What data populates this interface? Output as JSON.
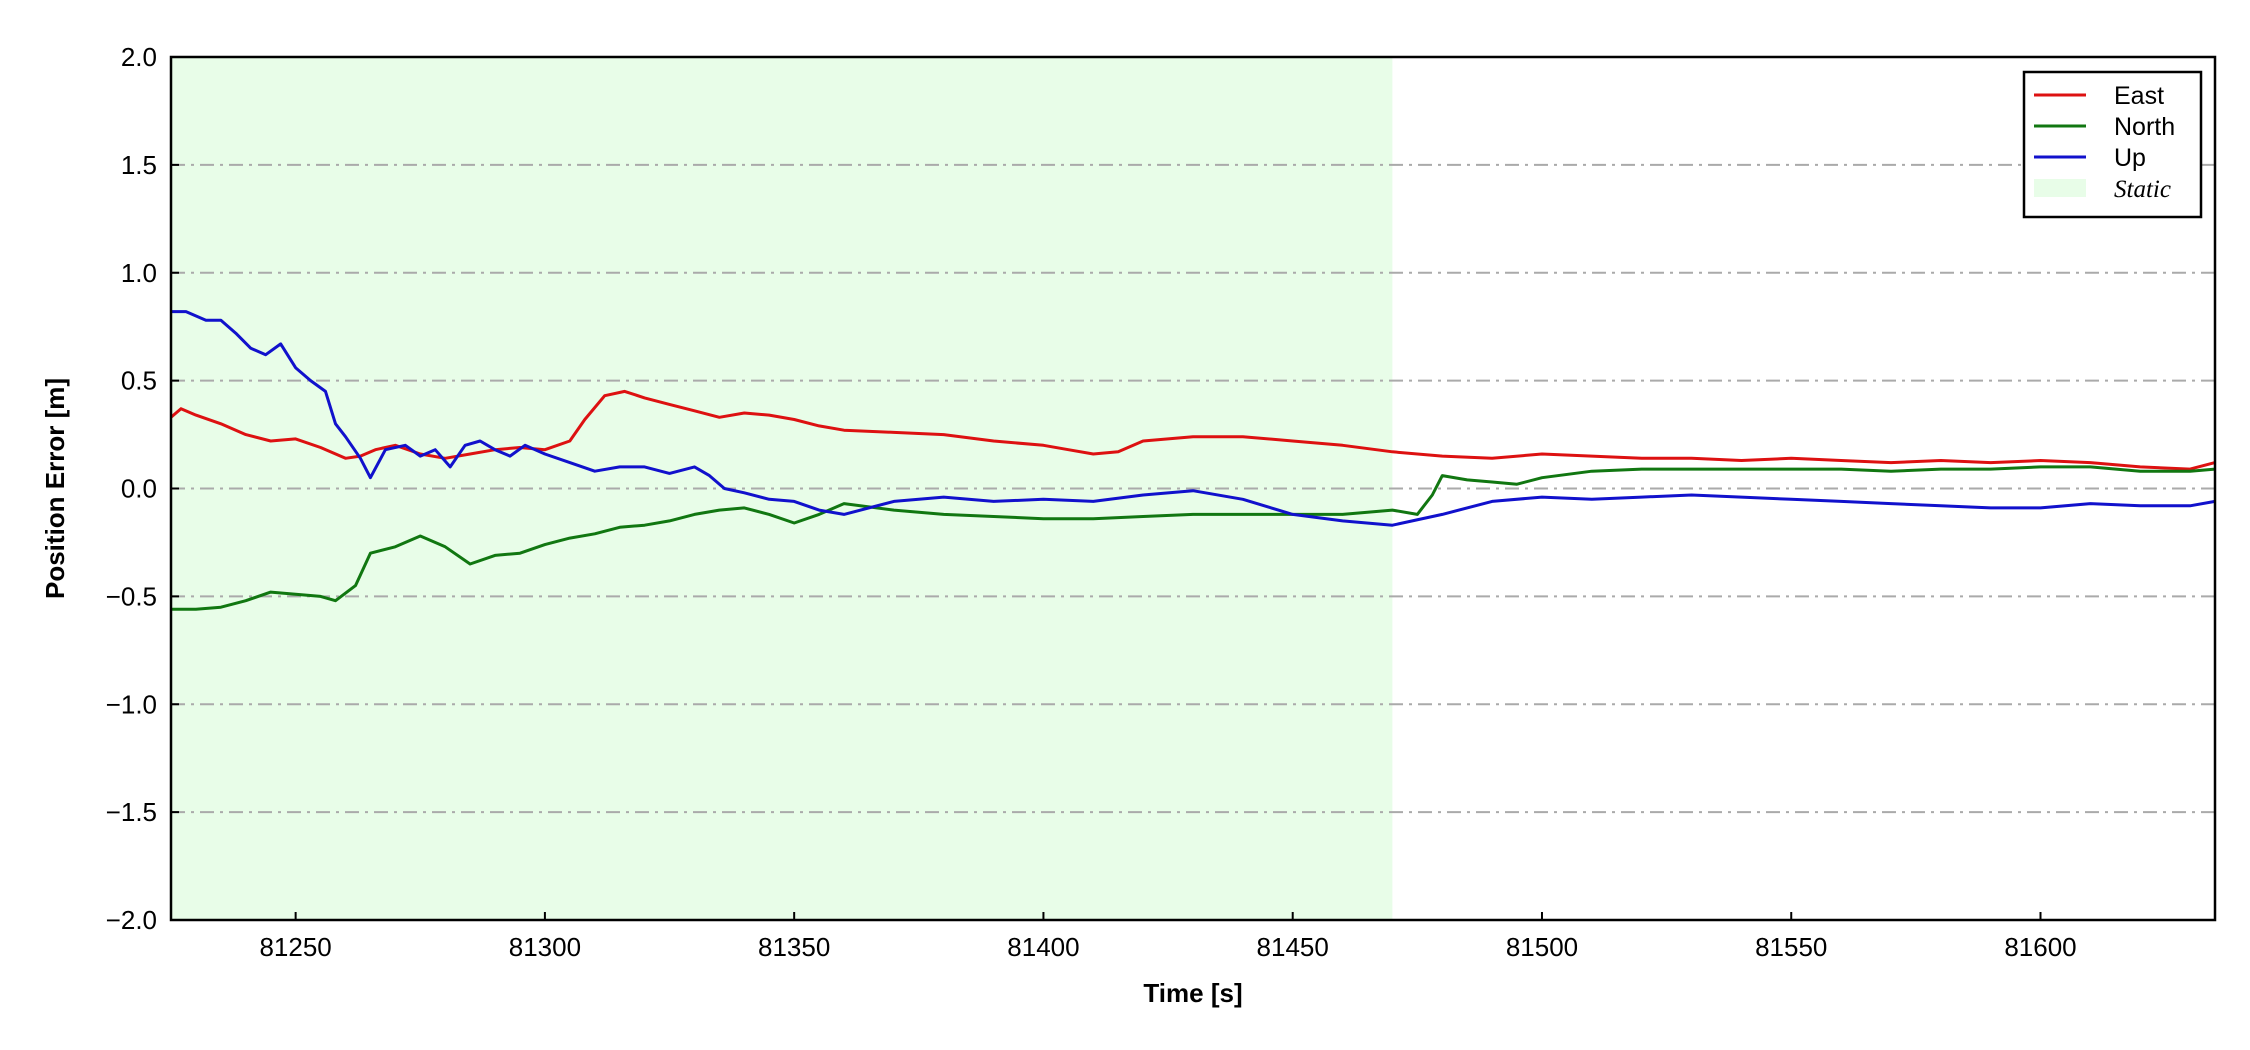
{
  "chart_data": {
    "type": "line",
    "xlabel": "Time [s]",
    "ylabel": "Position Error [m]",
    "xlim": [
      81225,
      81635
    ],
    "ylim": [
      -2.0,
      2.0
    ],
    "xticks": [
      81250,
      81300,
      81350,
      81400,
      81450,
      81500,
      81550,
      81600
    ],
    "yticks": [
      -2.0,
      -1.5,
      -1.0,
      -0.5,
      0.0,
      0.5,
      1.0,
      1.5,
      2.0
    ],
    "ytick_labels": [
      "−2.0",
      "−1.5",
      "−1.0",
      "−0.5",
      "0.0",
      "0.5",
      "1.0",
      "1.5",
      "2.0"
    ],
    "grid": "horizontal dash-dot",
    "legend_position": "top-right",
    "shaded_region": {
      "label": "Static",
      "x_start": 81225,
      "x_end": 81470,
      "color": "#e8fde8"
    },
    "series": [
      {
        "name": "East",
        "color": "#dd1111",
        "x": [
          81225,
          81227,
          81230,
          81235,
          81240,
          81245,
          81250,
          81255,
          81260,
          81263,
          81266,
          81270,
          81275,
          81280,
          81285,
          81290,
          81295,
          81300,
          81305,
          81308,
          81312,
          81316,
          81320,
          81325,
          81330,
          81335,
          81340,
          81345,
          81350,
          81355,
          81360,
          81370,
          81380,
          81390,
          81400,
          81405,
          81410,
          81415,
          81420,
          81430,
          81440,
          81450,
          81460,
          81470,
          81480,
          81490,
          81500,
          81510,
          81520,
          81530,
          81540,
          81550,
          81560,
          81570,
          81580,
          81590,
          81600,
          81610,
          81620,
          81630,
          81635
        ],
        "y": [
          0.33,
          0.37,
          0.34,
          0.3,
          0.25,
          0.22,
          0.23,
          0.19,
          0.14,
          0.15,
          0.18,
          0.2,
          0.16,
          0.14,
          0.16,
          0.18,
          0.19,
          0.18,
          0.22,
          0.32,
          0.43,
          0.45,
          0.42,
          0.39,
          0.36,
          0.33,
          0.35,
          0.34,
          0.32,
          0.29,
          0.27,
          0.26,
          0.25,
          0.22,
          0.2,
          0.18,
          0.16,
          0.17,
          0.22,
          0.24,
          0.24,
          0.22,
          0.2,
          0.17,
          0.15,
          0.14,
          0.16,
          0.15,
          0.14,
          0.14,
          0.13,
          0.14,
          0.13,
          0.12,
          0.13,
          0.12,
          0.13,
          0.12,
          0.1,
          0.09,
          0.12
        ]
      },
      {
        "name": "North",
        "color": "#117711",
        "x": [
          81225,
          81230,
          81235,
          81240,
          81245,
          81250,
          81255,
          81258,
          81262,
          81265,
          81270,
          81275,
          81280,
          81285,
          81290,
          81295,
          81300,
          81305,
          81310,
          81315,
          81320,
          81325,
          81330,
          81335,
          81340,
          81345,
          81350,
          81355,
          81360,
          81370,
          81380,
          81390,
          81400,
          81410,
          81420,
          81430,
          81440,
          81450,
          81460,
          81470,
          81475,
          81478,
          81480,
          81485,
          81490,
          81495,
          81500,
          81510,
          81520,
          81530,
          81540,
          81550,
          81560,
          81570,
          81580,
          81590,
          81600,
          81610,
          81620,
          81630,
          81635
        ],
        "y": [
          -0.56,
          -0.56,
          -0.55,
          -0.52,
          -0.48,
          -0.49,
          -0.5,
          -0.52,
          -0.45,
          -0.3,
          -0.27,
          -0.22,
          -0.27,
          -0.35,
          -0.31,
          -0.3,
          -0.26,
          -0.23,
          -0.21,
          -0.18,
          -0.17,
          -0.15,
          -0.12,
          -0.1,
          -0.09,
          -0.12,
          -0.16,
          -0.12,
          -0.07,
          -0.1,
          -0.12,
          -0.13,
          -0.14,
          -0.14,
          -0.13,
          -0.12,
          -0.12,
          -0.12,
          -0.12,
          -0.1,
          -0.12,
          -0.03,
          0.06,
          0.04,
          0.03,
          0.02,
          0.05,
          0.08,
          0.09,
          0.09,
          0.09,
          0.09,
          0.09,
          0.08,
          0.09,
          0.09,
          0.1,
          0.1,
          0.08,
          0.08,
          0.09
        ]
      },
      {
        "name": "Up",
        "color": "#1111cc",
        "x": [
          81225,
          81228,
          81232,
          81235,
          81238,
          81241,
          81244,
          81247,
          81250,
          81253,
          81256,
          81258,
          81260,
          81263,
          81265,
          81268,
          81272,
          81275,
          81278,
          81281,
          81284,
          81287,
          81290,
          81293,
          81296,
          81300,
          81305,
          81310,
          81315,
          81320,
          81325,
          81330,
          81333,
          81336,
          81340,
          81345,
          81350,
          81355,
          81360,
          81370,
          81380,
          81390,
          81400,
          81410,
          81420,
          81430,
          81440,
          81450,
          81460,
          81470,
          81480,
          81490,
          81500,
          81510,
          81520,
          81530,
          81540,
          81550,
          81560,
          81570,
          81580,
          81590,
          81600,
          81610,
          81620,
          81630,
          81635
        ],
        "y": [
          0.82,
          0.82,
          0.78,
          0.78,
          0.72,
          0.65,
          0.62,
          0.67,
          0.56,
          0.5,
          0.45,
          0.3,
          0.24,
          0.14,
          0.05,
          0.18,
          0.2,
          0.15,
          0.18,
          0.1,
          0.2,
          0.22,
          0.18,
          0.15,
          0.2,
          0.16,
          0.12,
          0.08,
          0.1,
          0.1,
          0.07,
          0.1,
          0.06,
          0.0,
          -0.02,
          -0.05,
          -0.06,
          -0.1,
          -0.12,
          -0.06,
          -0.04,
          -0.06,
          -0.05,
          -0.06,
          -0.03,
          -0.01,
          -0.05,
          -0.12,
          -0.15,
          -0.17,
          -0.12,
          -0.06,
          -0.04,
          -0.05,
          -0.04,
          -0.03,
          -0.04,
          -0.05,
          -0.06,
          -0.07,
          -0.08,
          -0.09,
          -0.09,
          -0.07,
          -0.08,
          -0.08,
          -0.06
        ]
      }
    ]
  }
}
